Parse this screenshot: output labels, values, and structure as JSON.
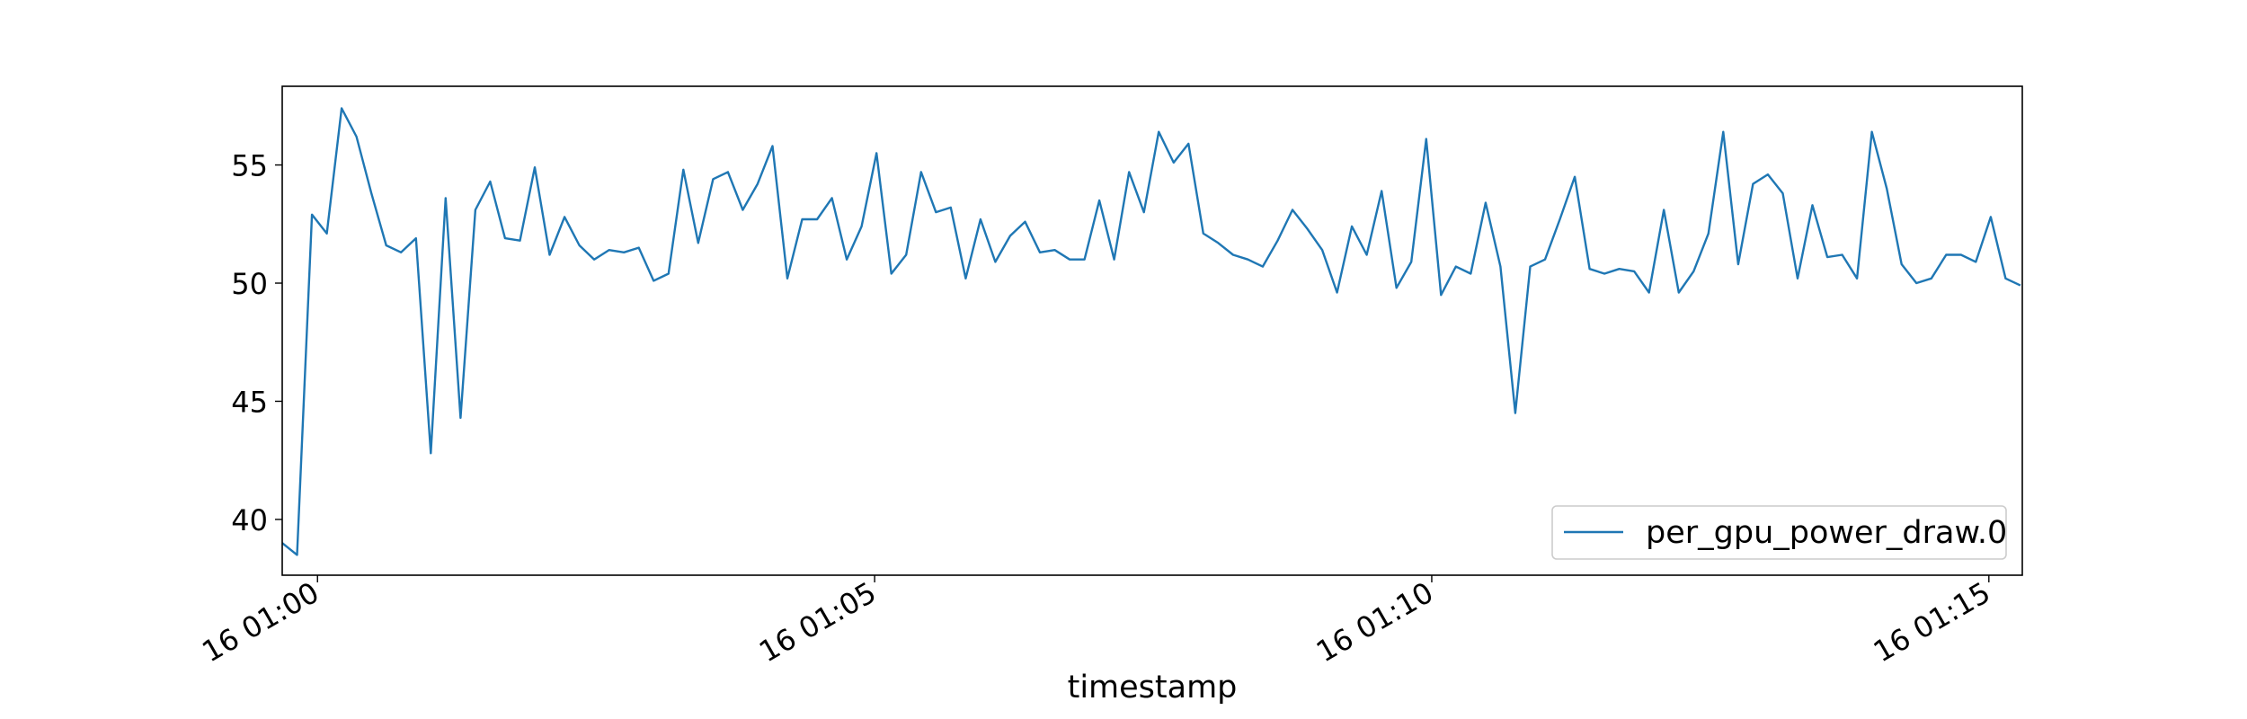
{
  "chart_data": {
    "type": "line",
    "title": "",
    "xlabel": "timestamp",
    "ylabel": "",
    "xlim": [
      "00:59:41",
      "01:15:18"
    ],
    "ylim": [
      37.64,
      58.33
    ],
    "grid": false,
    "legend_placement": "lower-right",
    "x_ticks": [
      {
        "time": "01:00:00",
        "label": "16 01:00"
      },
      {
        "time": "01:05:00",
        "label": "16 01:05"
      },
      {
        "time": "01:10:00",
        "label": "16 01:10"
      },
      {
        "time": "01:15:00",
        "label": "16 01:15"
      }
    ],
    "y_ticks": [
      40,
      45,
      50,
      55
    ],
    "series": [
      {
        "name": "per_gpu_power_draw.0",
        "color": "#1f77b4",
        "x": [
          "00:59:41",
          "00:59:49",
          "00:59:57",
          "01:00:05",
          "01:00:13",
          "01:00:21",
          "01:00:29",
          "01:00:37",
          "01:00:45",
          "01:00:53",
          "01:01:01",
          "01:01:09",
          "01:01:17",
          "01:01:25",
          "01:01:33",
          "01:01:41",
          "01:01:49",
          "01:01:57",
          "01:02:05",
          "01:02:13",
          "01:02:21",
          "01:02:29",
          "01:02:37",
          "01:02:45",
          "01:02:53",
          "01:03:01",
          "01:03:09",
          "01:03:17",
          "01:03:25",
          "01:03:33",
          "01:03:41",
          "01:03:49",
          "01:03:57",
          "01:04:05",
          "01:04:13",
          "01:04:21",
          "01:04:29",
          "01:04:37",
          "01:04:45",
          "01:04:53",
          "01:05:01",
          "01:05:09",
          "01:05:17",
          "01:05:25",
          "01:05:33",
          "01:05:41",
          "01:05:49",
          "01:05:57",
          "01:06:05",
          "01:06:13",
          "01:06:21",
          "01:06:29",
          "01:06:37",
          "01:06:45",
          "01:06:53",
          "01:07:01",
          "01:07:09",
          "01:07:17",
          "01:07:25",
          "01:07:33",
          "01:07:41",
          "01:07:49",
          "01:07:57",
          "01:08:05",
          "01:08:13",
          "01:08:21",
          "01:08:29",
          "01:08:37",
          "01:08:45",
          "01:08:53",
          "01:09:01",
          "01:09:09",
          "01:09:17",
          "01:09:25",
          "01:09:33",
          "01:09:41",
          "01:09:49",
          "01:09:57",
          "01:10:05",
          "01:10:13",
          "01:10:21",
          "01:10:29",
          "01:10:37",
          "01:10:45",
          "01:10:53",
          "01:11:01",
          "01:11:09",
          "01:11:17",
          "01:11:25",
          "01:11:33",
          "01:11:41",
          "01:11:49",
          "01:11:57",
          "01:12:05",
          "01:12:13",
          "01:12:21",
          "01:12:29",
          "01:12:37",
          "01:12:45",
          "01:12:53",
          "01:13:01",
          "01:13:09",
          "01:13:17",
          "01:13:25",
          "01:13:33",
          "01:13:41",
          "01:13:49",
          "01:13:57",
          "01:14:05",
          "01:14:13",
          "01:14:21",
          "01:14:29",
          "01:14:37",
          "01:14:45",
          "01:14:53",
          "01:15:01",
          "01:15:09",
          "01:15:17"
        ],
        "y": [
          39.0,
          38.5,
          52.9,
          52.1,
          57.4,
          56.2,
          53.8,
          51.6,
          51.3,
          51.9,
          42.8,
          53.6,
          44.3,
          53.1,
          54.3,
          51.9,
          51.8,
          54.9,
          51.2,
          52.8,
          51.6,
          51.0,
          51.4,
          51.3,
          51.5,
          50.1,
          50.4,
          54.8,
          51.7,
          54.4,
          54.7,
          53.1,
          54.2,
          55.8,
          50.2,
          52.7,
          52.7,
          53.6,
          51.0,
          52.4,
          55.5,
          50.4,
          51.2,
          54.7,
          53.0,
          53.2,
          50.2,
          52.7,
          50.9,
          52.0,
          52.6,
          51.3,
          51.4,
          51.0,
          51.0,
          53.5,
          51.0,
          54.7,
          53.0,
          56.4,
          55.1,
          55.9,
          52.1,
          51.7,
          51.2,
          51.0,
          50.7,
          51.8,
          53.1,
          52.3,
          51.4,
          49.6,
          52.4,
          51.2,
          53.9,
          49.8,
          50.9,
          56.1,
          49.5,
          50.7,
          50.4,
          53.4,
          50.7,
          44.5,
          50.7,
          51.0,
          52.7,
          54.5,
          50.6,
          50.4,
          50.6,
          50.5,
          49.6,
          53.1,
          49.6,
          50.5,
          52.1,
          56.4,
          50.8,
          54.2,
          54.6,
          53.8,
          50.2,
          53.3,
          51.1,
          51.2,
          50.2,
          56.4,
          54.0,
          50.8,
          50.0,
          50.2,
          51.2,
          51.2,
          50.9,
          52.8,
          50.2,
          49.9
        ]
      }
    ]
  }
}
